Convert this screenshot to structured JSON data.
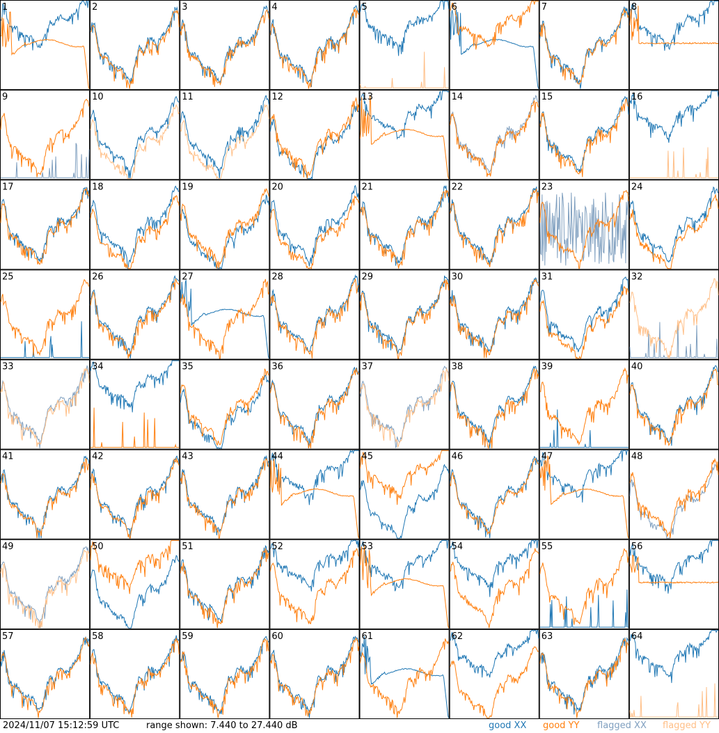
{
  "footer": {
    "timestamp": "2024/11/07 15:12:59 UTC",
    "range": "range shown: 7.440 to 27.440 dB"
  },
  "legend": [
    {
      "label": "good XX",
      "color": "#1f77b4"
    },
    {
      "label": "good YY",
      "color": "#ff7f0e"
    },
    {
      "label": "flagged XX",
      "color": "#7f9fbf"
    },
    {
      "label": "flagged YY",
      "color": "#ffbf87"
    }
  ],
  "chart_data": {
    "type": "line",
    "grid": {
      "rows": 8,
      "cols": 8
    },
    "ylim": [
      7.44,
      27.44
    ],
    "unit": "dB",
    "panels": [
      {
        "id": "1",
        "xx": "shifted",
        "yy": "dropout",
        "xx_flag": false,
        "yy_flag": false
      },
      {
        "id": "2",
        "xx": "normal",
        "yy": "normal",
        "xx_flag": false,
        "yy_flag": false
      },
      {
        "id": "3",
        "xx": "normal",
        "yy": "normal",
        "xx_flag": false,
        "yy_flag": false
      },
      {
        "id": "4",
        "xx": "normal",
        "yy": "normal",
        "xx_flag": false,
        "yy_flag": false
      },
      {
        "id": "5",
        "xx": "shifted",
        "yy": "spikes",
        "xx_flag": false,
        "yy_flag": true
      },
      {
        "id": "6",
        "xx": "dropout",
        "yy": "shifted",
        "xx_flag": false,
        "yy_flag": false
      },
      {
        "id": "7",
        "xx": "normal",
        "yy": "normal",
        "xx_flag": false,
        "yy_flag": false
      },
      {
        "id": "8",
        "xx": "shifted",
        "yy": "flat",
        "xx_flag": false,
        "yy_flag": false
      },
      {
        "id": "9",
        "xx": "spikes",
        "yy": "normal",
        "xx_flag": true,
        "yy_flag": false
      },
      {
        "id": "10",
        "xx": "normal",
        "yy": "low",
        "xx_flag": false,
        "yy_flag": true
      },
      {
        "id": "11",
        "xx": "normal",
        "yy": "low",
        "xx_flag": false,
        "yy_flag": true
      },
      {
        "id": "12",
        "xx": "low",
        "yy": "normal",
        "xx_flag": false,
        "yy_flag": false
      },
      {
        "id": "13",
        "xx": "shifted",
        "yy": "dropout",
        "xx_flag": false,
        "yy_flag": false
      },
      {
        "id": "14",
        "xx": "normal",
        "yy": "normal",
        "xx_flag": true,
        "yy_flag": false
      },
      {
        "id": "15",
        "xx": "normal",
        "yy": "normal",
        "xx_flag": false,
        "yy_flag": false
      },
      {
        "id": "16",
        "xx": "shifted",
        "yy": "spikes",
        "xx_flag": false,
        "yy_flag": true
      },
      {
        "id": "17",
        "xx": "normal",
        "yy": "normal",
        "xx_flag": false,
        "yy_flag": false
      },
      {
        "id": "18",
        "xx": "normal",
        "yy": "low",
        "xx_flag": false,
        "yy_flag": false
      },
      {
        "id": "19",
        "xx": "low",
        "yy": "normal",
        "xx_flag": false,
        "yy_flag": false
      },
      {
        "id": "20",
        "xx": "normal",
        "yy": "low",
        "xx_flag": false,
        "yy_flag": false
      },
      {
        "id": "21",
        "xx": "normal",
        "yy": "normal",
        "xx_flag": false,
        "yy_flag": false
      },
      {
        "id": "22",
        "xx": "normal",
        "yy": "normal",
        "xx_flag": false,
        "yy_flag": false
      },
      {
        "id": "23",
        "xx": "noise",
        "yy": "normal",
        "xx_flag": true,
        "yy_flag": false
      },
      {
        "id": "24",
        "xx": "normal",
        "yy": "low",
        "xx_flag": false,
        "yy_flag": false
      },
      {
        "id": "25",
        "xx": "spikes",
        "yy": "normal",
        "xx_flag": false,
        "yy_flag": false
      },
      {
        "id": "26",
        "xx": "normal",
        "yy": "normal",
        "xx_flag": false,
        "yy_flag": false
      },
      {
        "id": "27",
        "xx": "dropout",
        "yy": "normal",
        "xx_flag": false,
        "yy_flag": false
      },
      {
        "id": "28",
        "xx": "normal",
        "yy": "normal",
        "xx_flag": false,
        "yy_flag": false
      },
      {
        "id": "29",
        "xx": "normal",
        "yy": "normal",
        "xx_flag": false,
        "yy_flag": false
      },
      {
        "id": "30",
        "xx": "normal",
        "yy": "normal",
        "xx_flag": false,
        "yy_flag": false
      },
      {
        "id": "31",
        "xx": "normal",
        "yy": "low",
        "xx_flag": false,
        "yy_flag": false
      },
      {
        "id": "32",
        "xx": "spikes",
        "yy": "normal",
        "xx_flag": true,
        "yy_flag": true
      },
      {
        "id": "33",
        "xx": "normal",
        "yy": "normal",
        "xx_flag": true,
        "yy_flag": true
      },
      {
        "id": "34",
        "xx": "shifted",
        "yy": "spikes",
        "xx_flag": false,
        "yy_flag": false
      },
      {
        "id": "35",
        "xx": "low",
        "yy": "normal",
        "xx_flag": false,
        "yy_flag": false
      },
      {
        "id": "36",
        "xx": "normal",
        "yy": "normal",
        "xx_flag": false,
        "yy_flag": false
      },
      {
        "id": "37",
        "xx": "normal",
        "yy": "normal",
        "xx_flag": true,
        "yy_flag": true
      },
      {
        "id": "38",
        "xx": "normal",
        "yy": "normal",
        "xx_flag": false,
        "yy_flag": false
      },
      {
        "id": "39",
        "xx": "spikes",
        "yy": "normal",
        "xx_flag": false,
        "yy_flag": false
      },
      {
        "id": "40",
        "xx": "normal",
        "yy": "normal",
        "xx_flag": false,
        "yy_flag": false
      },
      {
        "id": "41",
        "xx": "normal",
        "yy": "normal",
        "xx_flag": false,
        "yy_flag": false
      },
      {
        "id": "42",
        "xx": "normal",
        "yy": "normal",
        "xx_flag": false,
        "yy_flag": false
      },
      {
        "id": "43",
        "xx": "normal",
        "yy": "normal",
        "xx_flag": false,
        "yy_flag": false
      },
      {
        "id": "44",
        "xx": "shifted",
        "yy": "dropout",
        "xx_flag": false,
        "yy_flag": false
      },
      {
        "id": "45",
        "xx": "low",
        "yy": "shifted",
        "xx_flag": false,
        "yy_flag": false
      },
      {
        "id": "46",
        "xx": "normal",
        "yy": "normal",
        "xx_flag": false,
        "yy_flag": false
      },
      {
        "id": "47",
        "xx": "shifted",
        "yy": "dropout",
        "xx_flag": false,
        "yy_flag": false
      },
      {
        "id": "48",
        "xx": "low",
        "yy": "normal",
        "xx_flag": true,
        "yy_flag": false
      },
      {
        "id": "49",
        "xx": "normal",
        "yy": "normal",
        "xx_flag": true,
        "yy_flag": true
      },
      {
        "id": "50",
        "xx": "low",
        "yy": "shifted",
        "xx_flag": false,
        "yy_flag": false
      },
      {
        "id": "51",
        "xx": "normal",
        "yy": "normal",
        "xx_flag": false,
        "yy_flag": false
      },
      {
        "id": "52",
        "xx": "shifted",
        "yy": "normal",
        "xx_flag": false,
        "yy_flag": false
      },
      {
        "id": "53",
        "xx": "shifted",
        "yy": "dropout",
        "xx_flag": false,
        "yy_flag": false
      },
      {
        "id": "54",
        "xx": "shifted",
        "yy": "normal",
        "xx_flag": false,
        "yy_flag": false
      },
      {
        "id": "55",
        "xx": "spikes",
        "yy": "normal",
        "xx_flag": false,
        "yy_flag": false
      },
      {
        "id": "56",
        "xx": "shifted",
        "yy": "flat",
        "xx_flag": false,
        "yy_flag": false
      },
      {
        "id": "57",
        "xx": "normal",
        "yy": "normal",
        "xx_flag": false,
        "yy_flag": false
      },
      {
        "id": "58",
        "xx": "normal",
        "yy": "normal",
        "xx_flag": false,
        "yy_flag": false
      },
      {
        "id": "59",
        "xx": "normal",
        "yy": "normal",
        "xx_flag": false,
        "yy_flag": false
      },
      {
        "id": "60",
        "xx": "normal",
        "yy": "normal",
        "xx_flag": false,
        "yy_flag": false
      },
      {
        "id": "61",
        "xx": "dropout",
        "yy": "normal",
        "xx_flag": false,
        "yy_flag": false
      },
      {
        "id": "62",
        "xx": "shifted",
        "yy": "low",
        "xx_flag": false,
        "yy_flag": false
      },
      {
        "id": "63",
        "xx": "normal",
        "yy": "normal",
        "xx_flag": false,
        "yy_flag": false
      },
      {
        "id": "64",
        "xx": "shifted",
        "yy": "spikes",
        "xx_flag": false,
        "yy_flag": true
      }
    ]
  }
}
